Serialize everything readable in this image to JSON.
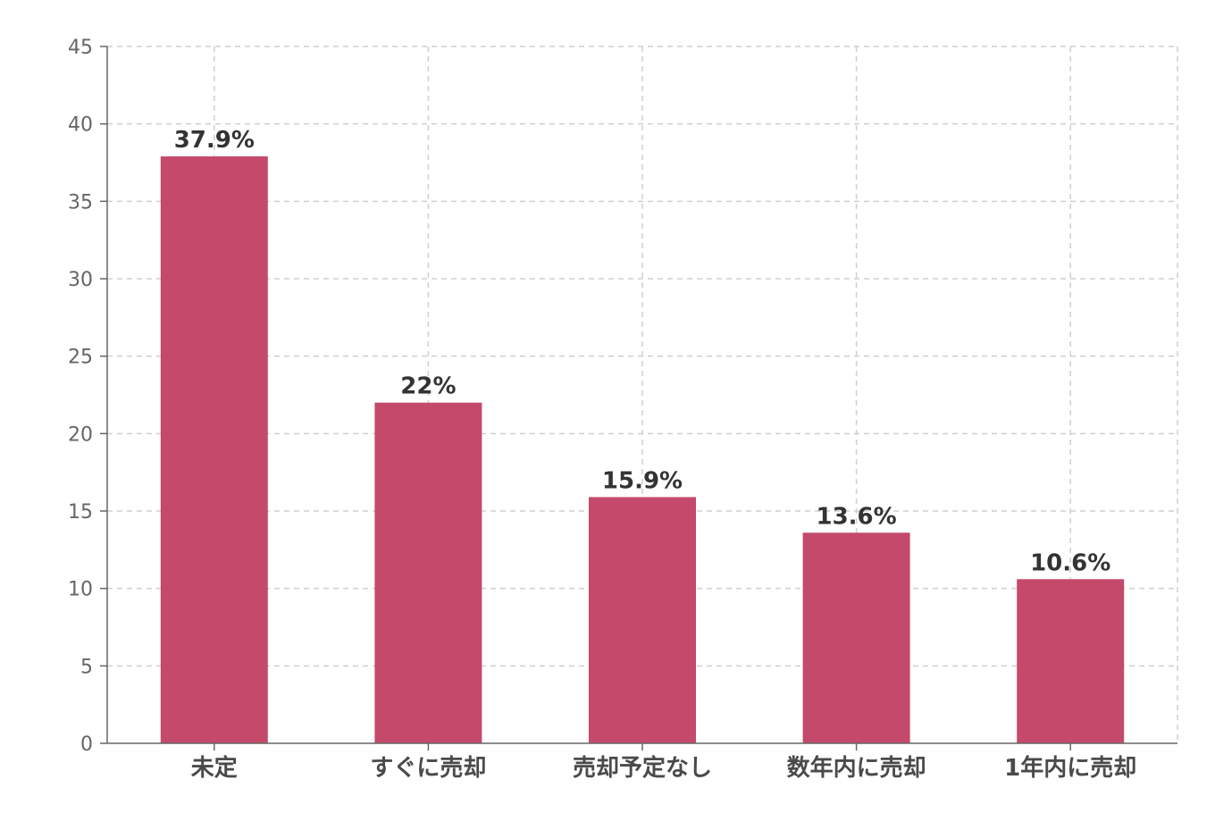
{
  "chart_data": {
    "type": "bar",
    "categories": [
      "未定",
      "すぐに売却",
      "売却予定なし",
      "数年内に売却",
      "1年内に売却"
    ],
    "series": [
      {
        "values": [
          37.9,
          22,
          15.9,
          13.6,
          10.6
        ],
        "color": "#c4496b"
      }
    ],
    "data_labels": [
      "37.9%",
      "22%",
      "15.9%",
      "13.6%",
      "10.6%"
    ],
    "y_ticks": [
      "0",
      "5",
      "10",
      "15",
      "20",
      "25",
      "30",
      "35",
      "40",
      "45"
    ],
    "ylim": [
      0,
      45
    ],
    "grid": true,
    "legend": false
  }
}
